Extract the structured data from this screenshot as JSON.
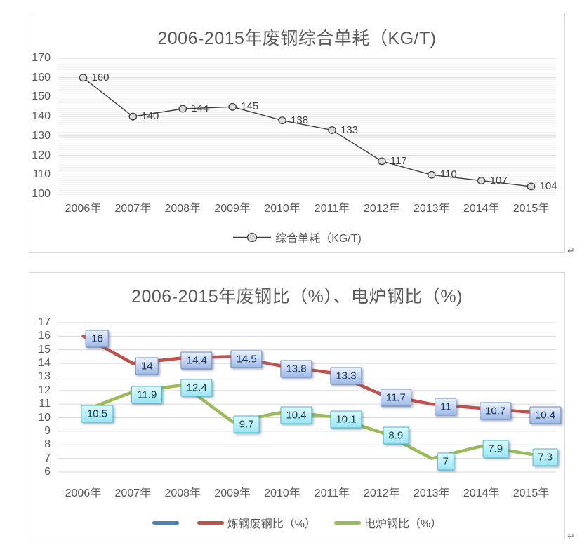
{
  "page": {
    "return_mark": "↵"
  },
  "colors": {
    "title_text": "#595959",
    "axis_text": "#595959",
    "major_grid": "#d9d9d9",
    "minor_grid": "#f1f1f1",
    "chart1_line": "#3f3f3f",
    "chart1_marker_fill": "#dcdcdc",
    "series_blue": "#4f81bd",
    "series_red": "#c0504d",
    "series_green": "#9bbb59"
  },
  "chart_data": [
    {
      "type": "line",
      "title": "2006-2015年废钢综合单耗（KG/T)",
      "categories": [
        "2006年",
        "2007年",
        "2008年",
        "2009年",
        "2010年",
        "2011年",
        "2012年",
        "2013年",
        "2014年",
        "2015年"
      ],
      "ylim": [
        100,
        170
      ],
      "ytick_step": 10,
      "yticks": [
        "170",
        "160",
        "150",
        "140",
        "130",
        "120",
        "110",
        "100"
      ],
      "grid": "major-and-minor-horizontal",
      "legend_position": "bottom",
      "series": [
        {
          "name": "综合单耗（KG/T)",
          "color": "#3f3f3f",
          "marker": "circle",
          "values": [
            160,
            140,
            144,
            145,
            138,
            133,
            117,
            110,
            107,
            104
          ],
          "data_labels": [
            "160",
            "140",
            "144",
            "145",
            "138",
            "133",
            "117",
            "110",
            "107",
            "104"
          ]
        }
      ]
    },
    {
      "type": "line",
      "title": "2006-2015年废钢比（%）、电炉钢比（%)",
      "categories": [
        "2006年",
        "2007年",
        "2008年",
        "2009年",
        "2010年",
        "2011年",
        "2012年",
        "2013年",
        "2014年",
        "2015年"
      ],
      "ylim": [
        6,
        17
      ],
      "ytick_step": 1,
      "yticks": [
        "17",
        "16",
        "15",
        "14",
        "13",
        "12",
        "11",
        "10",
        "9",
        "8",
        "7",
        "6"
      ],
      "grid": "major-horizontal",
      "legend_position": "bottom",
      "series": [
        {
          "name": "",
          "color": "#4f81bd",
          "values": [],
          "data_labels": []
        },
        {
          "name": "炼钢废钢比（%）",
          "color": "#c0504d",
          "label_style": "blue-box",
          "values": [
            16,
            14,
            14.4,
            14.5,
            13.8,
            13.3,
            11.7,
            11,
            10.7,
            10.4
          ],
          "data_labels": [
            "16",
            "14",
            "14.4",
            "14.5",
            "13.8",
            "13.3",
            "11.7",
            "11",
            "10.7",
            "10.4"
          ]
        },
        {
          "name": "电炉钢比（%）",
          "color": "#9bbb59",
          "label_style": "cyan-box",
          "values": [
            10.5,
            11.9,
            12.4,
            9.7,
            10.4,
            10.1,
            8.9,
            7,
            7.9,
            7.3
          ],
          "data_labels": [
            "10.5",
            "11.9",
            "12.4",
            "9.7",
            "10.4",
            "10.1",
            "8.9",
            "7",
            "7.9",
            "7.3"
          ]
        }
      ]
    }
  ]
}
